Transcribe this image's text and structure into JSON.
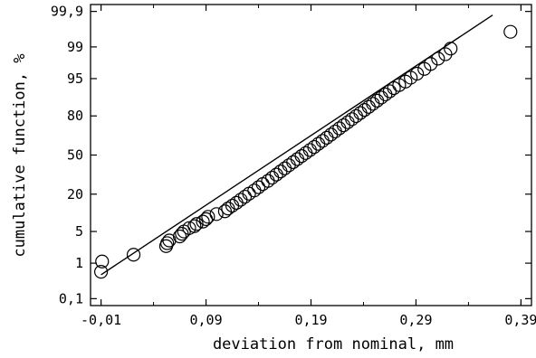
{
  "chart_data": {
    "type": "scatter",
    "title": "",
    "xlabel": "deviation from nominal, mm",
    "ylabel": "cumulative function, %",
    "x_ticks": [
      "-0,01",
      "0,09",
      "0,19",
      "0,29",
      "0,39"
    ],
    "x_tick_values": [
      -0.01,
      0.09,
      0.19,
      0.29,
      0.39
    ],
    "xlim": [
      -0.02,
      0.4
    ],
    "y_ticks": [
      "0,1",
      "1",
      "5",
      "20",
      "50",
      "80",
      "95",
      "99",
      "99,9"
    ],
    "y_tick_values": [
      0.1,
      1,
      5,
      20,
      50,
      80,
      95,
      99,
      99.9
    ],
    "y_scale": "normal-probability",
    "ylim": [
      0.06,
      99.94
    ],
    "grid": false,
    "series": [
      {
        "marker": "open-circle",
        "points": [
          [
            -0.01,
            0.6
          ],
          [
            -0.009,
            1.1
          ],
          [
            0.021,
            1.6
          ],
          [
            0.052,
            2.5
          ],
          [
            0.053,
            2.9
          ],
          [
            0.055,
            3.3
          ],
          [
            0.065,
            4.0
          ],
          [
            0.067,
            4.5
          ],
          [
            0.069,
            5.0
          ],
          [
            0.074,
            5.8
          ],
          [
            0.079,
            6.3
          ],
          [
            0.081,
            6.9
          ],
          [
            0.087,
            7.6
          ],
          [
            0.09,
            8.4
          ],
          [
            0.092,
            9.2
          ],
          [
            0.1,
            10.2
          ],
          [
            0.108,
            11.3
          ],
          [
            0.111,
            12.5
          ],
          [
            0.115,
            13.8
          ],
          [
            0.119,
            15.2
          ],
          [
            0.123,
            16.8
          ],
          [
            0.127,
            18.5
          ],
          [
            0.131,
            20.3
          ],
          [
            0.136,
            22.3
          ],
          [
            0.14,
            24.4
          ],
          [
            0.144,
            26.6
          ],
          [
            0.149,
            28.9
          ],
          [
            0.153,
            31.3
          ],
          [
            0.157,
            33.7
          ],
          [
            0.161,
            36.2
          ],
          [
            0.165,
            38.7
          ],
          [
            0.169,
            41.3
          ],
          [
            0.173,
            43.9
          ],
          [
            0.177,
            46.5
          ],
          [
            0.181,
            49.1
          ],
          [
            0.185,
            51.7
          ],
          [
            0.189,
            54.3
          ],
          [
            0.193,
            56.9
          ],
          [
            0.197,
            59.5
          ],
          [
            0.201,
            62.0
          ],
          [
            0.205,
            64.5
          ],
          [
            0.209,
            67.0
          ],
          [
            0.213,
            69.4
          ],
          [
            0.217,
            71.7
          ],
          [
            0.221,
            73.9
          ],
          [
            0.225,
            76.0
          ],
          [
            0.229,
            78.0
          ],
          [
            0.233,
            79.9
          ],
          [
            0.237,
            81.7
          ],
          [
            0.241,
            83.4
          ],
          [
            0.245,
            85.0
          ],
          [
            0.249,
            86.5
          ],
          [
            0.253,
            87.9
          ],
          [
            0.257,
            89.2
          ],
          [
            0.261,
            90.4
          ],
          [
            0.265,
            91.5
          ],
          [
            0.269,
            92.5
          ],
          [
            0.274,
            93.4
          ],
          [
            0.28,
            94.3
          ],
          [
            0.285,
            95.2
          ],
          [
            0.291,
            96.0
          ],
          [
            0.298,
            96.8
          ],
          [
            0.304,
            97.5
          ],
          [
            0.311,
            98.1
          ],
          [
            0.318,
            98.5
          ],
          [
            0.323,
            98.9
          ],
          [
            0.38,
            99.6
          ]
        ]
      }
    ],
    "fit_line": {
      "x": [
        -0.01,
        0.363
      ],
      "y": [
        0.5,
        99.87
      ]
    }
  }
}
